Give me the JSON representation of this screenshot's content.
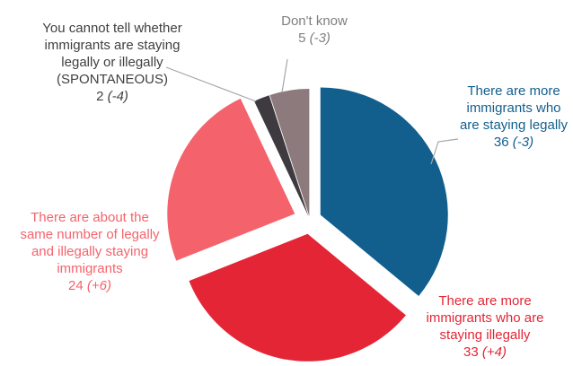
{
  "chart_data": {
    "type": "pie",
    "title": "",
    "unit": "%",
    "slices": [
      {
        "label_lines": [
          "There are more",
          "immigrants who",
          "are staying legally"
        ],
        "value": 36,
        "change": "(-3)",
        "color": "#125f8e",
        "label_color": "#125f8e"
      },
      {
        "label_lines": [
          "There are more",
          "immigrants who are",
          "staying illegally"
        ],
        "value": 33,
        "change": "(+4)",
        "color": "#e42535",
        "label_color": "#e42535"
      },
      {
        "label_lines": [
          "There are about the",
          "same number of legally",
          "and illegally staying",
          "immigrants"
        ],
        "value": 24,
        "change": "(+6)",
        "color": "#f4636c",
        "label_color": "#f4636c"
      },
      {
        "label_lines": [
          "You cannot tell whether",
          "immigrants are staying",
          "legally or illegally",
          "(SPONTANEOUS)"
        ],
        "value": 2,
        "change": "(-4)",
        "color": "#3f3a3f",
        "label_color": "#404040"
      },
      {
        "label_lines": [
          "Don't know"
        ],
        "value": 5,
        "change": "(-3)",
        "color": "#8c7a7c",
        "label_color": "#7f7f7f"
      }
    ]
  }
}
